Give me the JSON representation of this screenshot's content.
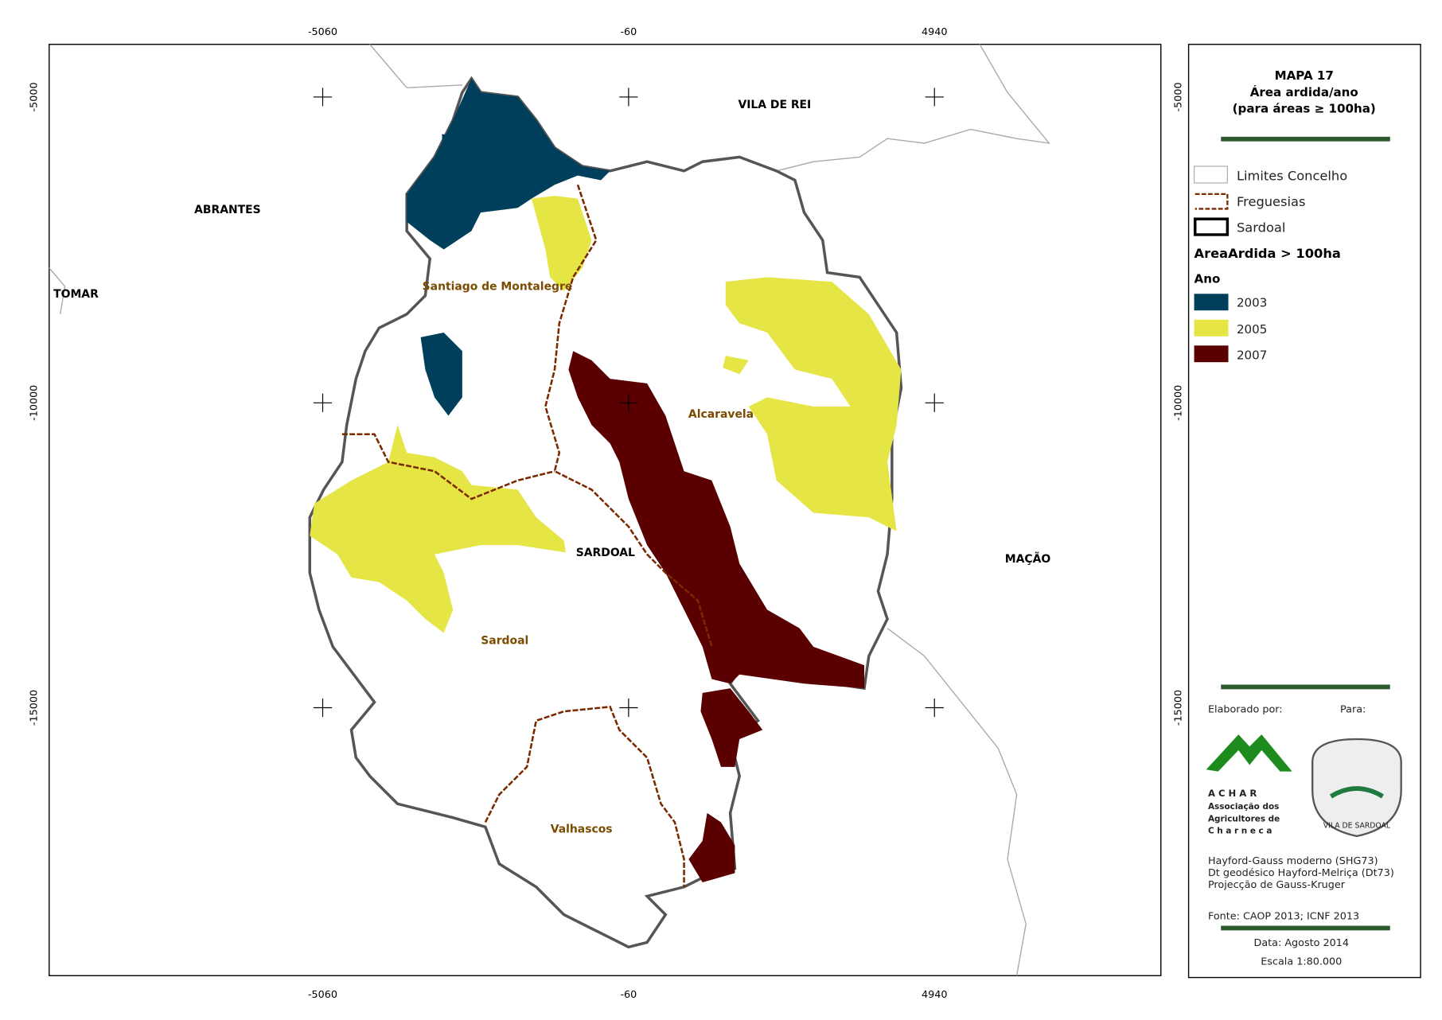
{
  "map": {
    "frame_ticks": {
      "x": [
        -5060,
        -60,
        4940
      ],
      "y": [
        -5000,
        -10000,
        -15000
      ]
    },
    "places": {
      "neighbors": [
        "VILA DE REI",
        "ABRANTES",
        "TOMAR",
        "MAÇÃO"
      ],
      "municipality": "SARDOAL",
      "parishes": [
        "Santiago de Montalegre",
        "Alcaravela",
        "Sardoal",
        "Valhascos"
      ]
    }
  },
  "legend": {
    "title": "MAPA 17",
    "subtitle": "Área ardida/ano",
    "note": "(para áreas ≥ 100ha)",
    "boundaries": [
      "Limites Concelho",
      "Freguesias",
      "Sardoal"
    ],
    "layer": "AreaArdida > 100ha",
    "field": "Ano",
    "years": [
      {
        "name": "2003",
        "color": "#003f5c"
      },
      {
        "name": "2005",
        "color": "#e5e545"
      },
      {
        "name": "2007",
        "color": "#5a0000"
      }
    ]
  },
  "credits": {
    "made_by": "Elaborado por:",
    "for": "Para:",
    "achar": [
      "A C H A R",
      "Associação dos",
      "Agricultores de",
      "C h a r n e c a"
    ],
    "crest": "VILA DE SARDOAL",
    "projection": [
      "Hayford-Gauss moderno (SHG73)",
      "Dt geodésico Hayford-Melriça (Dt73)",
      "Projecção de Gauss-Kruger"
    ],
    "source": "Fonte: CAOP 2013; ICNF 2013",
    "date": "Data: Agosto 2014",
    "scale": "Escala 1:80.000"
  }
}
